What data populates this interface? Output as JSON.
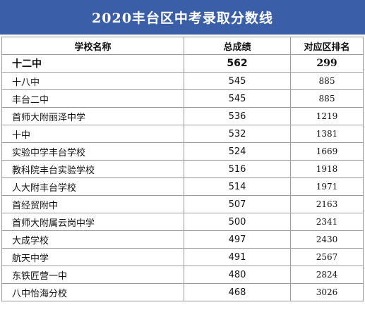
{
  "title": "2020丰台区中考录取分数线",
  "colors": {
    "title_background": "#3a5fa8",
    "title_text": "#ffffff",
    "grid_line": "#9a9a9a"
  },
  "table": {
    "headers": {
      "school": "学校名称",
      "score": "总成绩",
      "rank": "对应区排名"
    },
    "rows": [
      {
        "school": "十二中",
        "score": "562",
        "rank": "299",
        "highlight": true
      },
      {
        "school": "十八中",
        "score": "545",
        "rank": "885"
      },
      {
        "school": "丰台二中",
        "score": "545",
        "rank": "885"
      },
      {
        "school": "首师大附丽泽中学",
        "score": "536",
        "rank": "1219"
      },
      {
        "school": "十中",
        "score": "532",
        "rank": "1381"
      },
      {
        "school": "实验中学丰台学校",
        "score": "524",
        "rank": "1669"
      },
      {
        "school": "教科院丰台实验学校",
        "score": "516",
        "rank": "1918"
      },
      {
        "school": "人大附丰台学校",
        "score": "514",
        "rank": "1971"
      },
      {
        "school": "首经贸附中",
        "score": "507",
        "rank": "2163"
      },
      {
        "school": "首师大附属云岗中学",
        "score": "500",
        "rank": "2341"
      },
      {
        "school": "大成学校",
        "score": "497",
        "rank": "2430"
      },
      {
        "school": "航天中学",
        "score": "491",
        "rank": "2567"
      },
      {
        "school": "东铁匠营一中",
        "score": "480",
        "rank": "2824"
      },
      {
        "school": "八中怡海分校",
        "score": "468",
        "rank": "3026"
      }
    ]
  }
}
